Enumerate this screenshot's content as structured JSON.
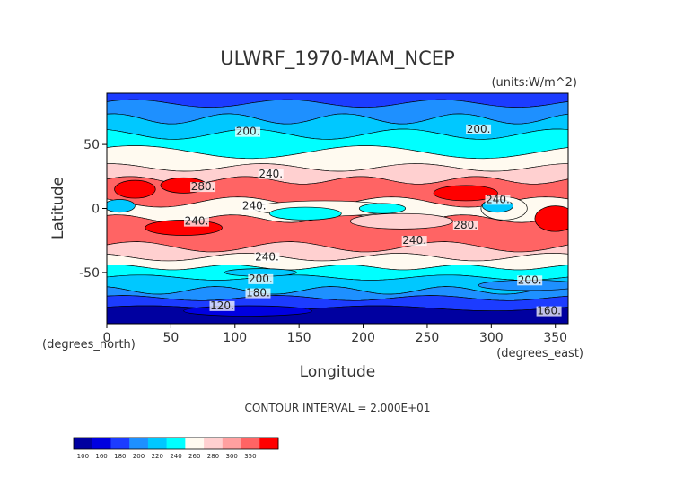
{
  "chart_data": {
    "type": "heatmap",
    "title": "ULWRF_1970-MAM_NCEP",
    "units_note": "(units:W/m^2)",
    "xlabel": "Longitude",
    "ylabel": "Latitude",
    "x_unit_note": "(degrees_east)",
    "y_unit_note": "(degrees_north)",
    "xlim": [
      0,
      360
    ],
    "ylim": [
      -90,
      90
    ],
    "x_ticks": [
      0,
      50,
      100,
      150,
      200,
      250,
      300,
      350
    ],
    "y_ticks": [
      -50,
      0,
      50
    ],
    "contour_interval_text": "CONTOUR INTERVAL = 2.000E+01",
    "colorbar": {
      "ticks": [
        "100",
        "160",
        "180",
        "200",
        "220",
        "240",
        "260",
        "280",
        "300",
        "350"
      ],
      "colors": [
        "#0000a0",
        "#0000e0",
        "#1c3cff",
        "#1e90ff",
        "#00c8ff",
        "#00ffff",
        "#fffaf0",
        "#ffd0d0",
        "#ffa0a0",
        "#ff6464",
        "#ff0000"
      ]
    },
    "contour_labels": [
      {
        "text": "200.",
        "lon": 110,
        "lat": 58
      },
      {
        "text": "200.",
        "lon": 290,
        "lat": 60
      },
      {
        "text": "240.",
        "lon": 128,
        "lat": 25
      },
      {
        "text": "280.",
        "lon": 75,
        "lat": 15
      },
      {
        "text": "240.",
        "lon": 115,
        "lat": 0
      },
      {
        "text": "240.",
        "lon": 70,
        "lat": -12
      },
      {
        "text": "240.",
        "lon": 305,
        "lat": 5
      },
      {
        "text": "280.",
        "lon": 280,
        "lat": -15
      },
      {
        "text": "240.",
        "lon": 240,
        "lat": -27
      },
      {
        "text": "240.",
        "lon": 125,
        "lat": -40
      },
      {
        "text": "200.",
        "lon": 120,
        "lat": -57
      },
      {
        "text": "200.",
        "lon": 330,
        "lat": -58
      },
      {
        "text": "180.",
        "lon": 118,
        "lat": -68
      },
      {
        "text": "120.",
        "lon": 90,
        "lat": -78
      },
      {
        "text": "160.",
        "lon": 345,
        "lat": -82
      }
    ]
  }
}
